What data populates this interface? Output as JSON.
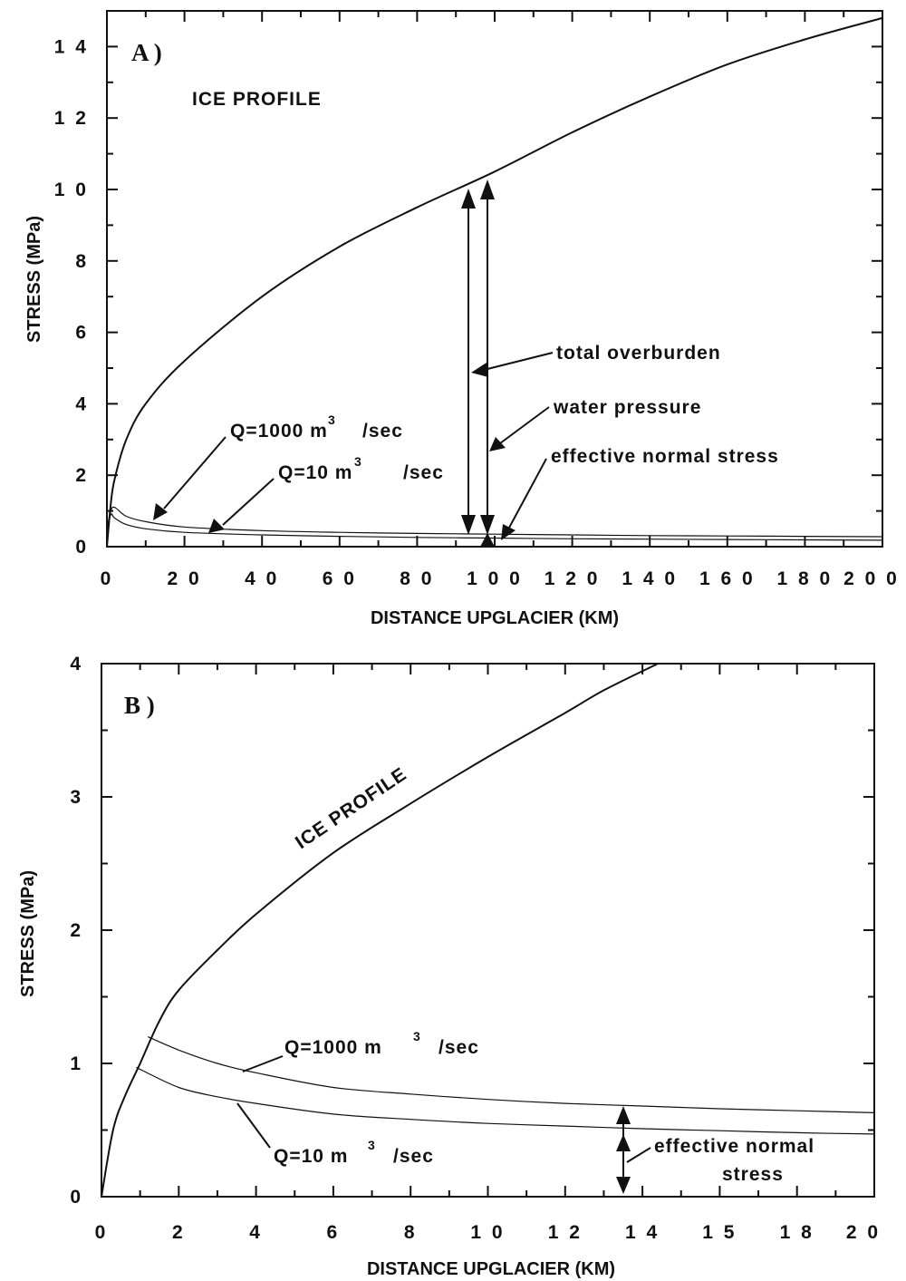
{
  "chart_data": [
    {
      "type": "line",
      "panel_label": "A )",
      "xlabel": "DISTANCE UPGLACIER (KM)",
      "ylabel": "STRESS (MPa)",
      "xlim": [
        0,
        200
      ],
      "ylim": [
        0,
        15
      ],
      "x_ticks": [
        "0",
        "2 0",
        "4 0",
        "6 0",
        "8 0",
        "1 0 0",
        "1 2 0",
        "1 4 0",
        "1 6 0",
        "1 8 0",
        "2 0 0"
      ],
      "y_ticks": [
        "0",
        "2",
        "4",
        "6",
        "8",
        "1 0",
        "1 2",
        "1 4"
      ],
      "series": [
        {
          "name": "ICE PROFILE",
          "x": [
            0,
            1,
            2,
            5,
            10,
            20,
            40,
            60,
            80,
            100,
            120,
            140,
            160,
            180,
            200
          ],
          "y": [
            0,
            1.2,
            1.9,
            3.0,
            4.0,
            5.2,
            7.0,
            8.4,
            9.5,
            10.5,
            11.6,
            12.6,
            13.5,
            14.2,
            14.8
          ]
        },
        {
          "name": "Q=1000 m3 /sec",
          "x": [
            0,
            1,
            2,
            5,
            10,
            20,
            40,
            60,
            80,
            100,
            120,
            140,
            160,
            180,
            200
          ],
          "y": [
            0.5,
            1.0,
            1.1,
            0.85,
            0.7,
            0.55,
            0.45,
            0.4,
            0.37,
            0.35,
            0.33,
            0.31,
            0.3,
            0.29,
            0.28
          ]
        },
        {
          "name": "Q=10 m3 /sec",
          "x": [
            0,
            1,
            2,
            5,
            10,
            20,
            40,
            60,
            80,
            100,
            120,
            140,
            160,
            180,
            200
          ],
          "y": [
            0.4,
            0.9,
            0.8,
            0.62,
            0.5,
            0.4,
            0.33,
            0.29,
            0.26,
            0.24,
            0.22,
            0.21,
            0.2,
            0.19,
            0.18
          ]
        }
      ],
      "annotations": {
        "ice_profile": "ICE PROFILE",
        "q1000_main": "Q=1000 m",
        "q10_main": "Q=10 m",
        "superscript": "3",
        "per_sec": "/sec",
        "total_overburden": "total  overburden",
        "water_pressure": "water  pressure",
        "effective_normal_stress": "effective  normal  stress"
      }
    },
    {
      "type": "line",
      "panel_label": "B )",
      "xlabel": "DISTANCE UPGLACIER (KM)",
      "ylabel": "STRESS (MPa)",
      "xlim": [
        0,
        20
      ],
      "ylim": [
        0,
        4
      ],
      "x_ticks": [
        "0",
        "2",
        "4",
        "6",
        "8",
        "1 0",
        "1 2",
        "1 4",
        "1 5",
        "1 8",
        "2 0"
      ],
      "y_ticks": [
        "0",
        "1",
        "2",
        "3",
        "4"
      ],
      "series": [
        {
          "name": "ICE PROFILE",
          "x": [
            0,
            0.3,
            0.6,
            1,
            1.5,
            2,
            3,
            4,
            6,
            8,
            10,
            12,
            13,
            14.4
          ],
          "y": [
            0,
            0.5,
            0.75,
            1.0,
            1.32,
            1.55,
            1.85,
            2.12,
            2.58,
            2.95,
            3.3,
            3.63,
            3.8,
            4.0
          ]
        },
        {
          "name": "Q=1000 m3 /sec",
          "x": [
            1.2,
            2,
            3,
            4,
            6,
            8,
            10,
            12,
            14,
            16,
            18,
            20
          ],
          "y": [
            1.2,
            1.1,
            1.0,
            0.93,
            0.82,
            0.77,
            0.73,
            0.7,
            0.68,
            0.66,
            0.645,
            0.63
          ]
        },
        {
          "name": "Q=10 m3 /sec",
          "x": [
            0.9,
            2,
            3,
            4,
            6,
            8,
            10,
            12,
            14,
            16,
            18,
            20
          ],
          "y": [
            0.97,
            0.82,
            0.75,
            0.7,
            0.62,
            0.58,
            0.55,
            0.53,
            0.51,
            0.495,
            0.48,
            0.47
          ]
        }
      ],
      "annotations": {
        "ice_profile": "ICE PROFILE",
        "q1000_main": "Q=1000 m",
        "q10_main": "Q=10 m",
        "superscript": "3",
        "per_sec": "/sec",
        "effective_line1": "effective  normal",
        "effective_line2": "stress"
      }
    }
  ]
}
